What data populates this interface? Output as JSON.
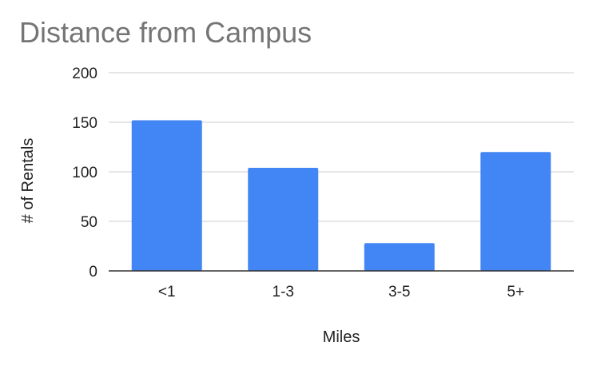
{
  "chart_data": {
    "type": "bar",
    "title": "Distance from Campus",
    "xlabel": "Miles",
    "ylabel": "# of Rentals",
    "categories": [
      "<1",
      "1-3",
      "3-5",
      "5+"
    ],
    "values": [
      152,
      104,
      28,
      120
    ],
    "ylim": [
      0,
      200
    ],
    "yticks": [
      0,
      50,
      100,
      150,
      200
    ],
    "grid": true,
    "legend": "none",
    "bar_color": "#4285f4",
    "grid_color": "#cccccc",
    "axis_color": "#333333"
  }
}
